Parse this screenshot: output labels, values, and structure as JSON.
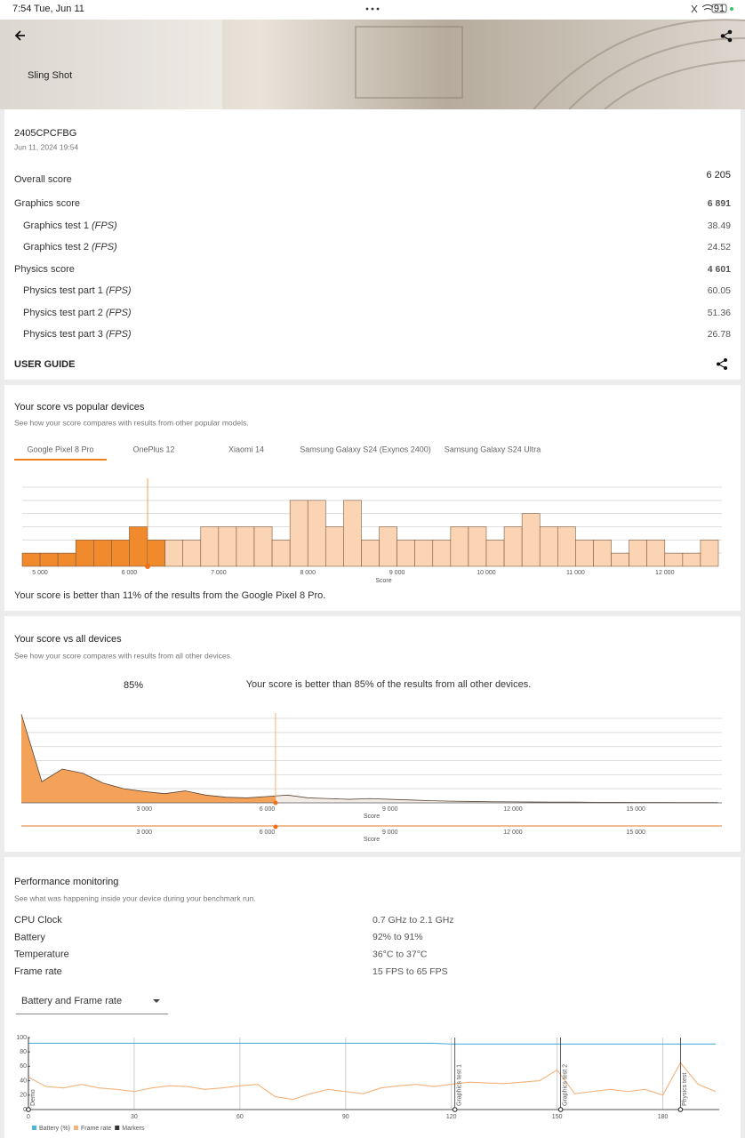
{
  "status_bar": {
    "time": "7:54",
    "date": "Tue, Jun 11",
    "battery": "91"
  },
  "header": {
    "title": "Sling Shot"
  },
  "result": {
    "device": "2405CPCFBG",
    "date": "Jun 11, 2024 19:54",
    "overall_label": "Overall score",
    "overall_value": "6 205",
    "rows": [
      {
        "label": "Graphics score",
        "value": "6 891"
      },
      {
        "label": "Graphics test 1",
        "unit": "(FPS)",
        "value": "38.49"
      },
      {
        "label": "Graphics test 2",
        "unit": "(FPS)",
        "value": "24.52"
      },
      {
        "label": "Physics score",
        "value": "4 601"
      },
      {
        "label": "Physics test part 1",
        "unit": "(FPS)",
        "value": "60.05"
      },
      {
        "label": "Physics test part 2",
        "unit": "(FPS)",
        "value": "51.36"
      },
      {
        "label": "Physics test part 3",
        "unit": "(FPS)",
        "value": "26.78"
      }
    ],
    "user_guide": "USER GUIDE"
  },
  "popular": {
    "title": "Your score vs popular devices",
    "subtitle": "See how your score compares with results from other popular models.",
    "tabs": [
      "Google Pixel 8 Pro",
      "OnePlus 12",
      "Xiaomi 14",
      "Samsung Galaxy S24 (Exynos 2400)",
      "Samsung Galaxy S24 Ultra"
    ],
    "note": "Your score is better than 11% of the results from the Google Pixel 8 Pro.",
    "chart": {
      "type": "histogram",
      "x_label": "Score",
      "your_score": 6205,
      "below_color": "#f08a2c",
      "above_color": "#fbd5b3",
      "bins": [
        4800,
        5000,
        5200,
        5400,
        5600,
        5800,
        6000,
        6200,
        6400,
        6600,
        6800,
        7000,
        7200,
        7400,
        7600,
        7800,
        8000,
        8200,
        8400,
        8600,
        8800,
        9000,
        9200,
        9400,
        9600,
        9800,
        10000,
        10200,
        10400,
        10600,
        10800,
        11000,
        11200,
        11400,
        11600,
        11800,
        12000,
        12200,
        12400,
        12600
      ],
      "values": [
        1,
        1,
        1,
        2,
        2,
        2,
        3,
        2,
        2,
        2,
        3,
        3,
        3,
        3,
        2,
        5,
        5,
        3,
        5,
        2,
        3,
        2,
        2,
        2,
        3,
        3,
        2,
        3,
        4,
        3,
        3,
        2,
        2,
        1,
        2,
        2,
        1,
        1,
        2
      ],
      "xlim": [
        4800,
        12600
      ],
      "xticks": [
        {
          "value": 5000,
          "label": "5 000"
        },
        {
          "value": 6000,
          "label": "6 000"
        },
        {
          "value": 7000,
          "label": "7 000"
        },
        {
          "value": 8000,
          "label": "8 000"
        },
        {
          "value": 9000,
          "label": "9 000"
        },
        {
          "value": 10000,
          "label": "10 000"
        },
        {
          "value": 11000,
          "label": "11 000"
        },
        {
          "value": 12000,
          "label": "12 000"
        }
      ],
      "ylim": [
        0,
        6
      ],
      "yticks": [
        1,
        2,
        3,
        4,
        5,
        6
      ],
      "grid": true
    }
  },
  "all_devices": {
    "title": "Your score vs all devices",
    "subtitle": "See how your score compares with results from all other devices.",
    "percent": "85%",
    "note": "Your score is better than 85% of the results from all other devices.",
    "chart": {
      "type": "area",
      "x_label": "Score",
      "your_score": 6205,
      "below_color": "#f4a25a",
      "above_color": "#f3ece6",
      "line_color": "#5a4636",
      "x": [
        0,
        500,
        1000,
        1500,
        2000,
        2500,
        3000,
        3500,
        4000,
        4500,
        5000,
        5500,
        6000,
        6500,
        7000,
        7500,
        8000,
        8500,
        9000,
        9500,
        10000,
        10500,
        11000,
        11500,
        12000,
        12500,
        13000,
        13500,
        14000,
        14500,
        15000,
        15500,
        16000,
        16500,
        17000
      ],
      "values": [
        6.3,
        1.5,
        2.4,
        2.1,
        1.4,
        1.0,
        0.8,
        0.65,
        0.85,
        0.55,
        0.4,
        0.35,
        0.45,
        0.55,
        0.35,
        0.3,
        0.25,
        0.3,
        0.25,
        0.2,
        0.15,
        0.12,
        0.1,
        0.08,
        0.07,
        0.06,
        0.05,
        0.05,
        0.04,
        0.04,
        0.03,
        0.03,
        0.02,
        0.02,
        0.02
      ],
      "xlim": [
        0,
        17100
      ],
      "xticks": [
        {
          "value": 3000,
          "label": "3 000"
        },
        {
          "value": 6000,
          "label": "6 000"
        },
        {
          "value": 9000,
          "label": "9 000"
        },
        {
          "value": 12000,
          "label": "12 000"
        },
        {
          "value": 15000,
          "label": "15 000"
        }
      ],
      "ylim": [
        0,
        6
      ],
      "yticks": [
        1,
        2,
        3,
        4,
        5,
        6
      ],
      "grid": true
    }
  },
  "performance": {
    "title": "Performance monitoring",
    "subtitle": "See what was happening inside your device during your benchmark run.",
    "rows": [
      {
        "label": "CPU Clock",
        "value": "0.7 GHz to 2.1 GHz"
      },
      {
        "label": "Battery",
        "value": "92% to 91%"
      },
      {
        "label": "Temperature",
        "value": "36°C to 37°C"
      },
      {
        "label": "Frame rate",
        "value": "15 FPS to 65 FPS"
      }
    ],
    "dropdown": "Battery and Frame rate",
    "chart": {
      "type": "line",
      "x": [
        0,
        5,
        10,
        15,
        20,
        25,
        30,
        35,
        40,
        45,
        50,
        55,
        60,
        65,
        70,
        75,
        80,
        85,
        90,
        95,
        100,
        105,
        110,
        115,
        120,
        125,
        130,
        135,
        140,
        145,
        150,
        155,
        160,
        165,
        170,
        175,
        180,
        185,
        190,
        195
      ],
      "series": [
        {
          "name": "Battery (%)",
          "color": "#4fb3d9",
          "values": [
            92,
            92,
            92,
            92,
            92,
            92,
            92,
            92,
            92,
            92,
            92,
            92,
            92,
            92,
            92,
            92,
            92,
            92,
            92,
            92,
            92,
            92,
            92,
            92,
            91,
            91,
            91,
            91,
            91,
            91,
            91,
            91,
            91,
            91,
            91,
            91,
            91,
            91,
            91,
            91
          ]
        },
        {
          "name": "Frame rate",
          "color": "#f2b27c",
          "values": [
            45,
            32,
            30,
            35,
            30,
            28,
            25,
            30,
            33,
            32,
            28,
            30,
            33,
            35,
            18,
            14,
            22,
            28,
            25,
            22,
            30,
            33,
            35,
            32,
            35,
            38,
            37,
            36,
            38,
            40,
            55,
            22,
            25,
            28,
            25,
            28,
            20,
            65,
            35,
            25
          ]
        }
      ],
      "markers_name": "Markers",
      "markers_color": "#333333",
      "markers": [
        {
          "label": "Demo",
          "x": 0
        },
        {
          "label": "Graphics test 1",
          "x": 121
        },
        {
          "label": "Graphics test 2",
          "x": 151
        },
        {
          "label": "Physics test",
          "x": 185
        }
      ],
      "xlim": [
        0,
        196
      ],
      "xticks": [
        0,
        30,
        60,
        90,
        120,
        150,
        180
      ],
      "ylim": [
        0,
        100
      ],
      "yticks": [
        0,
        20,
        40,
        60,
        80,
        100
      ],
      "grid": true
    }
  }
}
